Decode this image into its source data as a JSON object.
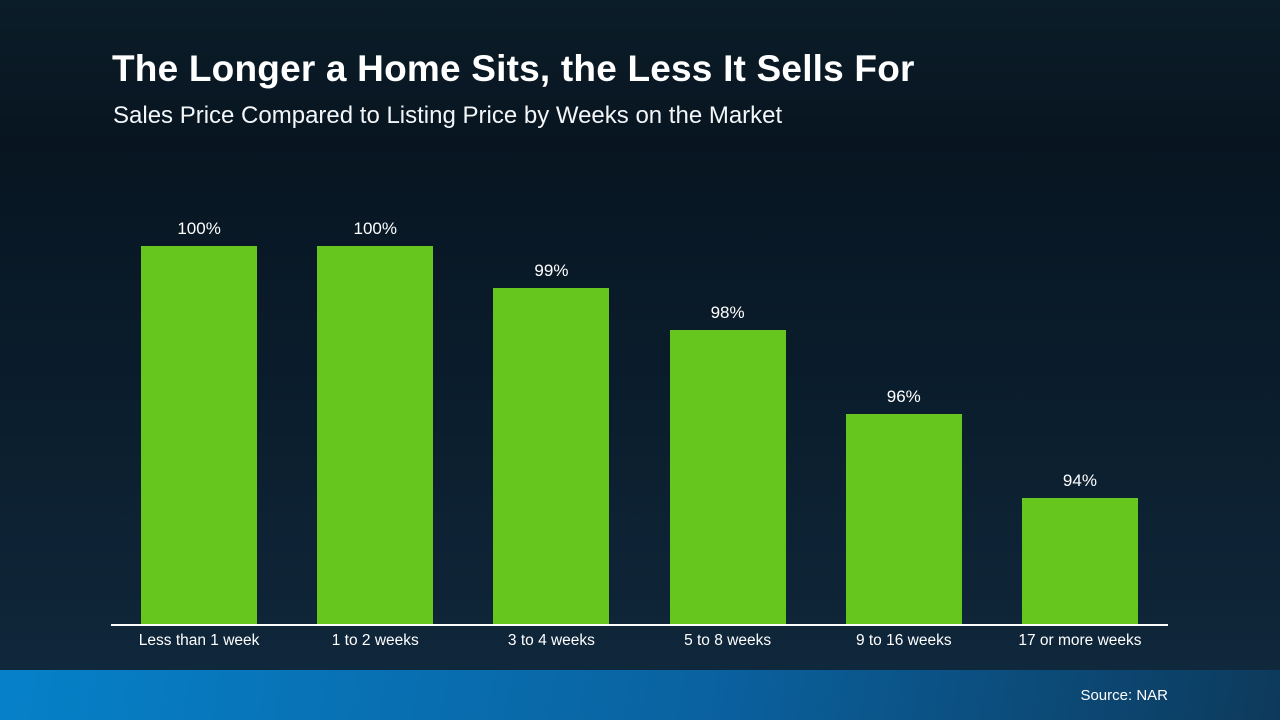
{
  "slide": {
    "title": "The Longer a Home Sits, the Less It Sells For",
    "subtitle": "Sales Price Compared to Listing Price by Weeks on the Market",
    "source": "Source: NAR"
  },
  "colors": {
    "background_top": "#0b1d28",
    "background_bottom": "#112a40",
    "bar": "#67c61d",
    "axis_line": "#ffffff",
    "text": "#ffffff",
    "footer_gradient_left": "#0681c9",
    "footer_gradient_right": "#0d3a5c"
  },
  "chart_data": {
    "type": "bar",
    "title": "The Longer a Home Sits, the Less It Sells For",
    "subtitle": "Sales Price Compared to Listing Price by Weeks on the Market",
    "categories": [
      "Less than 1 week",
      "1 to 2 weeks",
      "3 to 4 weeks",
      "5 to 8 weeks",
      "9 to 16 weeks",
      "17 or more weeks"
    ],
    "values": [
      100,
      100,
      99,
      98,
      96,
      94
    ],
    "value_labels": [
      "100%",
      "100%",
      "99%",
      "98%",
      "96%",
      "94%"
    ],
    "xlabel": "",
    "ylabel": "",
    "ylim": [
      91,
      100
    ],
    "grid": false,
    "legend": false,
    "bar_color": "#67c61d"
  }
}
